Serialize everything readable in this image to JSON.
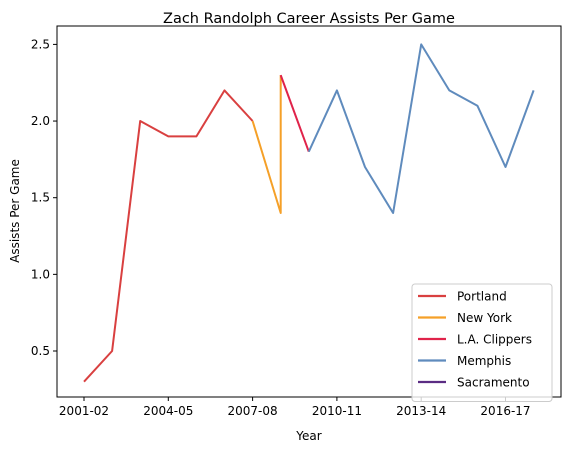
{
  "chart_data": {
    "type": "line",
    "title": "Zach Randolph Career Assists Per Game",
    "xlabel": "Year",
    "ylabel": "Assists Per Game",
    "x_tick_labels": [
      "2001-02",
      "2004-05",
      "2007-08",
      "2010-11",
      "2013-14",
      "2016-17"
    ],
    "y_ticks": [
      0.5,
      1.0,
      1.5,
      2.0,
      2.5
    ],
    "y_tick_labels": [
      "0.5",
      "1.0",
      "1.5",
      "2.0",
      "2.5"
    ],
    "ylim": [
      0.2,
      2.62
    ],
    "grid": false,
    "legend_position": "lower-right",
    "series": [
      {
        "name": "Portland",
        "color": "#d94040",
        "points": [
          {
            "x": "2001-02",
            "y": 0.3
          },
          {
            "x": "2002-03",
            "y": 0.5
          },
          {
            "x": "2003-04",
            "y": 2.0
          },
          {
            "x": "2004-05",
            "y": 1.9
          },
          {
            "x": "2005-06",
            "y": 1.9
          },
          {
            "x": "2006-07",
            "y": 2.2
          },
          {
            "x": "2007-08",
            "y": 2.0
          }
        ]
      },
      {
        "name": "New York",
        "color": "#f5a028",
        "points": [
          {
            "x": "2007-08",
            "y": 2.0
          },
          {
            "x": "2008-09",
            "y": 1.4
          },
          {
            "x": "2008-09",
            "y": 2.3
          }
        ]
      },
      {
        "name": "L.A. Clippers",
        "color": "#e0234a",
        "points": [
          {
            "x": "2008-09",
            "y": 2.3
          },
          {
            "x": "2009-10",
            "y": 1.8
          }
        ]
      },
      {
        "name": "Memphis",
        "color": "#5f8bbd",
        "points": [
          {
            "x": "2009-10",
            "y": 1.8
          },
          {
            "x": "2010-11",
            "y": 2.2
          },
          {
            "x": "2011-12",
            "y": 1.7
          },
          {
            "x": "2012-13",
            "y": 1.4
          },
          {
            "x": "2013-14",
            "y": 2.5
          },
          {
            "x": "2014-15",
            "y": 2.2
          },
          {
            "x": "2015-16",
            "y": 2.1
          },
          {
            "x": "2016-17",
            "y": 1.7
          },
          {
            "x": "2017-18",
            "y": 2.2
          }
        ]
      },
      {
        "name": "Sacramento",
        "color": "#5b2c83",
        "points": []
      }
    ]
  }
}
